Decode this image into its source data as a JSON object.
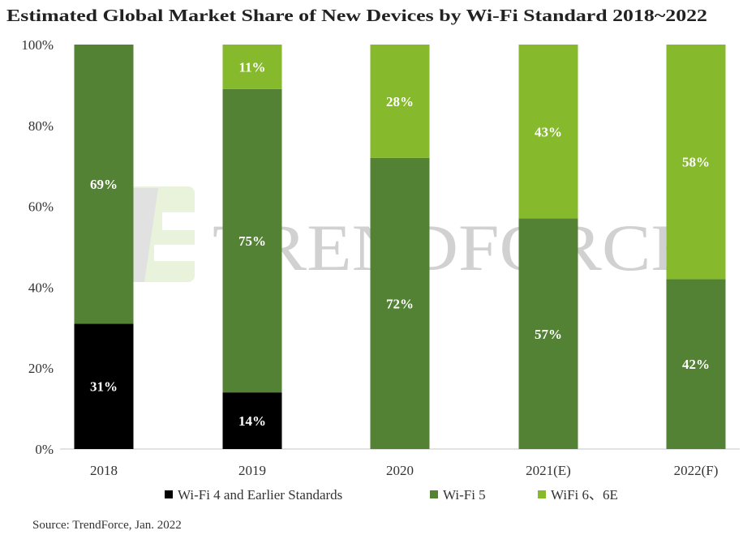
{
  "chart_data": {
    "type": "bar",
    "stacked": true,
    "title": "Estimated Global Market Share of New Devices by Wi-Fi Standard 2018~2022",
    "categories": [
      "2018",
      "2019",
      "2020",
      "2021(E)",
      "2022(F)"
    ],
    "series": [
      {
        "name": "Wi-Fi 4 and Earlier Standards",
        "color": "#000000",
        "values": [
          31,
          14,
          0,
          0,
          0
        ]
      },
      {
        "name": "Wi-Fi 5",
        "color": "#548235",
        "values": [
          69,
          75,
          72,
          57,
          42
        ]
      },
      {
        "name": "WiFi 6、6E",
        "color": "#86BA2C",
        "values": [
          0,
          11,
          28,
          43,
          58
        ]
      }
    ],
    "yticks": [
      "0%",
      "20%",
      "40%",
      "60%",
      "80%",
      "100%"
    ],
    "ylim": [
      0,
      100
    ],
    "grid": false,
    "legend": "bottom",
    "source": "Source: TrendForce, Jan. 2022"
  },
  "watermark": "TRENDFORCE"
}
